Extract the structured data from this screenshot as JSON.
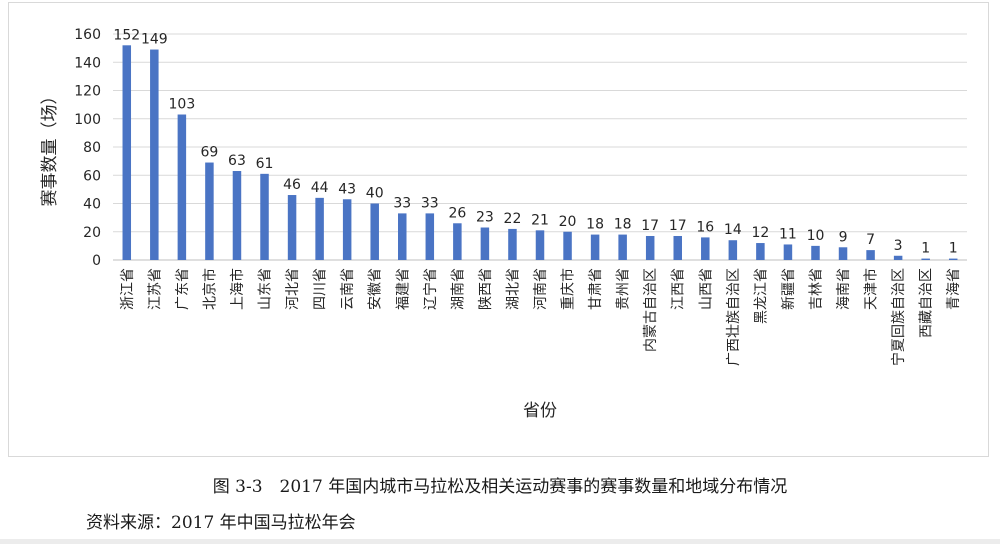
{
  "chart_data": {
    "type": "bar",
    "xlabel": "省份",
    "ylabel": "赛事数量（场）",
    "ylim": [
      0,
      160
    ],
    "yticks": [
      0,
      20,
      40,
      60,
      80,
      100,
      120,
      140,
      160
    ],
    "grid": true,
    "legend": "none",
    "bar_color": "#4a74c4",
    "categories": [
      "浙江省",
      "江苏省",
      "广东省",
      "北京市",
      "上海市",
      "山东省",
      "河北省",
      "四川省",
      "云南省",
      "安徽省",
      "福建省",
      "辽宁省",
      "湖南省",
      "陕西省",
      "湖北省",
      "河南省",
      "重庆市",
      "甘肃省",
      "贵州省",
      "内蒙古自治区",
      "江西省",
      "山西省",
      "广西壮族自治区",
      "黑龙江省",
      "新疆省",
      "吉林省",
      "海南省",
      "天津市",
      "宁夏回族自治区",
      "西藏自治区",
      "青海省"
    ],
    "values": [
      152,
      149,
      103,
      69,
      63,
      61,
      46,
      44,
      43,
      40,
      33,
      33,
      26,
      23,
      22,
      21,
      20,
      18,
      18,
      17,
      17,
      16,
      14,
      12,
      11,
      10,
      9,
      7,
      3,
      1,
      1
    ]
  },
  "caption": {
    "figure": "图 3-3　2017 年国内城市马拉松及相关运动赛事的赛事数量和地域分布情况",
    "source": "资料来源：2017 年中国马拉松年会"
  }
}
